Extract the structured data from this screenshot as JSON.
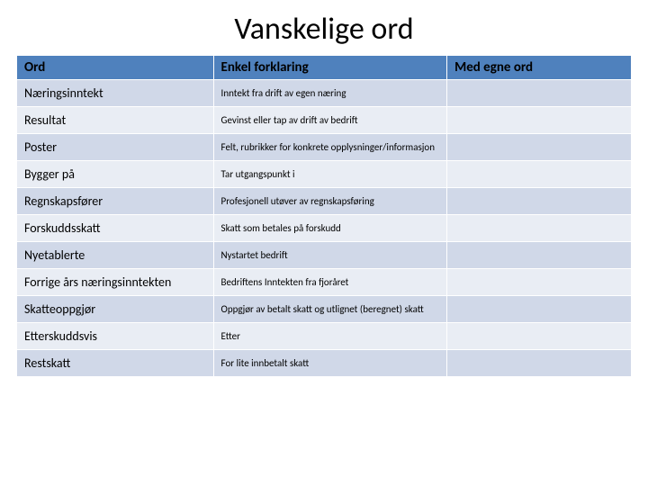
{
  "title": "Vanskelige ord",
  "table": {
    "header_bg": "#4f81bd",
    "row_alt_bg": "#d0d8e8",
    "row_bg": "#e9edf4",
    "columns": [
      "Ord",
      "Enkel forklaring",
      "Med egne ord"
    ],
    "rows": [
      {
        "term": "Næringsinntekt",
        "expl": "Inntekt fra drift av egen næring",
        "own": ""
      },
      {
        "term": "Resultat",
        "expl": "Gevinst eller tap av drift av bedrift",
        "own": ""
      },
      {
        "term": "Poster",
        "expl": "Felt, rubrikker for konkrete opplysninger/informasjon",
        "own": ""
      },
      {
        "term": "Bygger på",
        "expl": "Tar utgangspunkt i",
        "own": ""
      },
      {
        "term": "Regnskapsfører",
        "expl": "Profesjonell utøver av regnskapsføring",
        "own": ""
      },
      {
        "term": "Forskuddsskatt",
        "expl": "Skatt som betales på forskudd",
        "own": ""
      },
      {
        "term": "Nyetablerte",
        "expl": "Nystartet bedrift",
        "own": ""
      },
      {
        "term": "Forrige års næringsinntekten",
        "expl": "Bedriftens Inntekten fra fjoråret",
        "own": ""
      },
      {
        "term": "Skatteoppgjør",
        "expl": "Oppgjør av betalt skatt og utlignet (beregnet) skatt",
        "own": ""
      },
      {
        "term": "Etterskuddsvis",
        "expl": "Etter",
        "own": ""
      },
      {
        "term": "Restskatt",
        "expl": "For lite innbetalt skatt",
        "own": ""
      }
    ]
  }
}
